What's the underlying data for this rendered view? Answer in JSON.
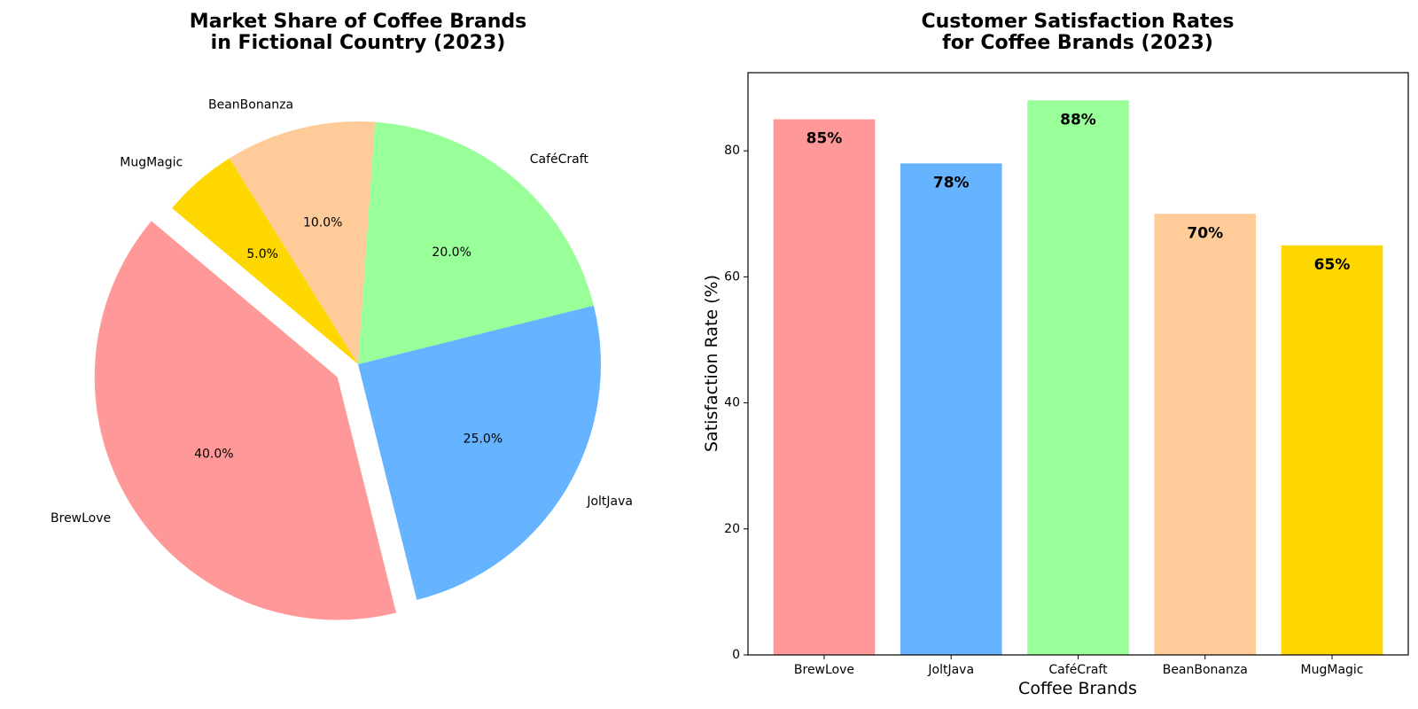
{
  "chart_data": [
    {
      "type": "pie",
      "title": [
        "Market Share of Coffee Brands",
        "in Fictional Country (2023)"
      ],
      "categories": [
        "BrewLove",
        "JoltJava",
        "CaféCraft",
        "BeanBonanza",
        "MugMagic"
      ],
      "values": [
        40,
        25,
        20,
        10,
        5
      ],
      "value_labels": [
        "40.0%",
        "25.0%",
        "20.0%",
        "10.0%",
        "5.0%"
      ],
      "colors": [
        "#ff9999",
        "#66b3ff",
        "#99ff99",
        "#ffcc99",
        "#ffd700"
      ],
      "exploded": "BrewLove",
      "start_angle_deg": 140
    },
    {
      "type": "bar",
      "title": [
        "Customer Satisfaction Rates",
        "for Coffee Brands (2023)"
      ],
      "categories": [
        "BrewLove",
        "JoltJava",
        "CaféCraft",
        "BeanBonanza",
        "MugMagic"
      ],
      "values": [
        85,
        78,
        88,
        70,
        65
      ],
      "value_labels": [
        "85%",
        "78%",
        "88%",
        "70%",
        "65%"
      ],
      "colors": [
        "#ff9999",
        "#66b3ff",
        "#99ff99",
        "#ffcc99",
        "#ffd700"
      ],
      "xlabel": "Coffee Brands",
      "ylabel": "Satisfaction Rate (%)",
      "ylim": [
        0,
        92.4
      ],
      "yticks": [
        0,
        20,
        40,
        60,
        80
      ],
      "grid": false
    }
  ]
}
